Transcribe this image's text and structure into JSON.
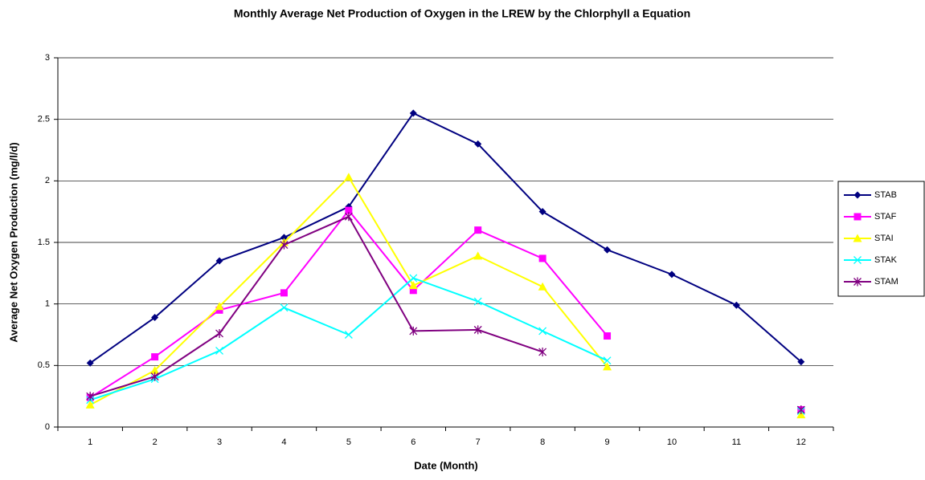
{
  "chart_data": {
    "type": "line",
    "title": "Monthly Average Net Production of Oxygen in the LREW by the Chlorphyll a Equation",
    "x_label": "Date (Month)",
    "y_label": "Average Net Oxygen Production (mg/l/d)",
    "categories": [
      "1",
      "2",
      "3",
      "4",
      "5",
      "6",
      "7",
      "8",
      "9",
      "10",
      "11",
      "12"
    ],
    "ylim": [
      0,
      3
    ],
    "yticks": [
      0,
      0.5,
      1,
      1.5,
      2,
      2.5,
      3
    ],
    "grid": true,
    "legend": "right",
    "series": [
      {
        "name": "STAB",
        "color": "#000080",
        "marker": "diamond",
        "values": [
          0.52,
          0.89,
          1.35,
          1.54,
          1.79,
          2.55,
          2.3,
          1.75,
          1.44,
          1.24,
          0.99,
          0.53
        ]
      },
      {
        "name": "STAF",
        "color": "#ff00ff",
        "marker": "square",
        "values": [
          0.24,
          0.57,
          0.95,
          1.09,
          1.76,
          1.11,
          1.6,
          1.37,
          0.74,
          null,
          null,
          0.14
        ]
      },
      {
        "name": "STAI",
        "color": "#ffff00",
        "marker": "triangle",
        "values": [
          0.18,
          0.46,
          0.98,
          1.5,
          2.03,
          1.15,
          1.39,
          1.14,
          0.49,
          null,
          null,
          0.1
        ]
      },
      {
        "name": "STAK",
        "color": "#00ffff",
        "marker": "x",
        "values": [
          0.22,
          0.39,
          0.62,
          0.97,
          0.75,
          1.21,
          1.02,
          0.78,
          0.54,
          null,
          null,
          0.13
        ]
      },
      {
        "name": "STAM",
        "color": "#800080",
        "marker": "star",
        "values": [
          0.25,
          0.41,
          0.76,
          1.48,
          1.71,
          0.78,
          0.79,
          0.61,
          null,
          null,
          null,
          0.14
        ]
      }
    ]
  }
}
